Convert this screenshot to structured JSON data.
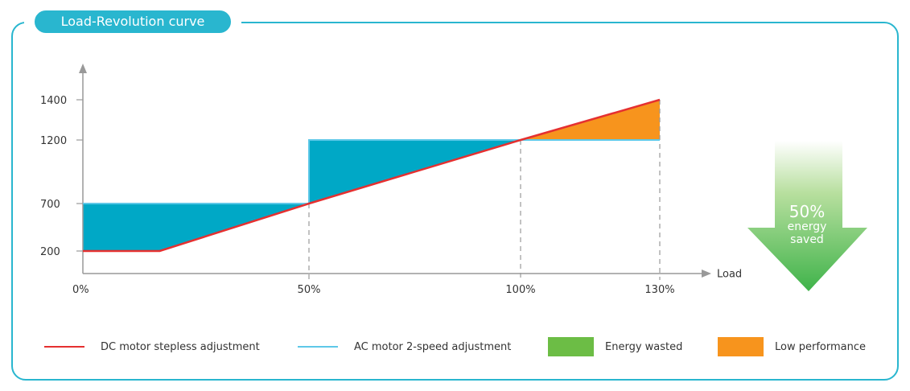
{
  "title": "Load-Revolution curve",
  "chart_data": {
    "type": "area",
    "x_label": "Load",
    "x_ticks": [
      "0%",
      "50%",
      "100%",
      "130%"
    ],
    "x_tick_values": [
      0,
      50,
      100,
      130
    ],
    "y_ticks": [
      200,
      700,
      1200,
      1400
    ],
    "series": [
      {
        "name": "DC motor stepless adjustment",
        "color": "#e53030",
        "x": [
          0,
          17,
          50,
          100,
          130
        ],
        "y": [
          200,
          200,
          700,
          1200,
          1400
        ]
      },
      {
        "name": "AC motor 2-speed adjustment",
        "color": "#5ec8e8",
        "x": [
          0,
          50,
          50,
          130
        ],
        "y": [
          700,
          700,
          1200,
          1200
        ]
      }
    ],
    "regions": [
      {
        "name": "Energy wasted",
        "color": "#00a8c6"
      },
      {
        "name": "Low performance",
        "color": "#f7941d"
      }
    ],
    "legend_swatch_energy_color": "#6cbd45"
  },
  "arrow": {
    "percent": "50%",
    "line1": "energy",
    "line2": "saved"
  },
  "legend": [
    {
      "label": "DC motor stepless adjustment"
    },
    {
      "label": "AC motor 2-speed adjustment"
    },
    {
      "label": "Energy wasted"
    },
    {
      "label": "Low performance"
    }
  ]
}
